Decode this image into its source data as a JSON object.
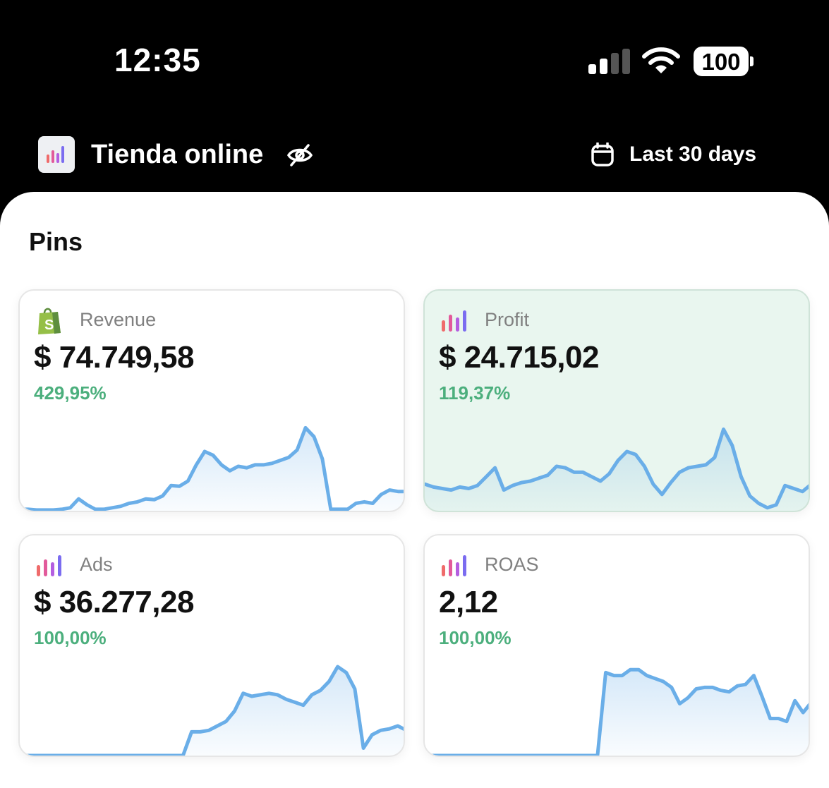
{
  "status_bar": {
    "time": "12:35",
    "battery": "100",
    "signal_icon": "signal-icon",
    "wifi_icon": "wifi-icon"
  },
  "header": {
    "store_name": "Tienda online",
    "date_range": "Last 30 days",
    "hide_icon": "eye-off-icon",
    "calendar_icon": "calendar-icon"
  },
  "pins": {
    "title": "Pins",
    "cards": [
      {
        "label": "Revenue",
        "value": "$ 74.749,58",
        "change": "429,95%",
        "icon": "shopify-bag-icon"
      },
      {
        "label": "Profit",
        "value": "$ 24.715,02",
        "change": "119,37%",
        "icon": "bar-chart-icon"
      },
      {
        "label": "Ads",
        "value": "$ 36.277,28",
        "change": "100,00%",
        "icon": "bar-chart-icon"
      },
      {
        "label": "ROAS",
        "value": "2,12",
        "change": "100,00%",
        "icon": "bar-chart-icon"
      }
    ]
  },
  "colors": {
    "positive": "#4caf7d",
    "sparkline_stroke": "#6aaee8",
    "profit_card_bg": "#e9f6ef"
  },
  "chart_data": [
    {
      "type": "area",
      "name": "Revenue",
      "values": [
        2,
        2,
        1,
        1,
        1,
        2,
        4,
        16,
        8,
        2,
        2,
        4,
        6,
        10,
        12,
        16,
        15,
        20,
        34,
        33,
        40,
        62,
        80,
        75,
        62,
        54,
        60,
        58,
        62,
        62,
        64,
        68,
        72,
        82,
        112,
        100,
        70,
        2,
        2,
        2,
        10,
        12,
        10,
        22,
        28,
        26,
        26
      ]
    },
    {
      "type": "area",
      "name": "Profit",
      "values": [
        36,
        32,
        30,
        28,
        32,
        30,
        34,
        46,
        58,
        28,
        34,
        38,
        40,
        44,
        48,
        60,
        58,
        52,
        52,
        46,
        40,
        50,
        68,
        80,
        76,
        60,
        36,
        22,
        38,
        52,
        58,
        60,
        62,
        72,
        110,
        88,
        46,
        20,
        10,
        4,
        8,
        34,
        30,
        26,
        36
      ]
    },
    {
      "type": "area",
      "name": "Ads",
      "values": [
        0,
        0,
        0,
        0,
        0,
        0,
        0,
        0,
        0,
        0,
        0,
        0,
        0,
        0,
        0,
        0,
        0,
        0,
        0,
        0,
        32,
        32,
        34,
        40,
        46,
        60,
        84,
        80,
        82,
        84,
        82,
        76,
        72,
        68,
        82,
        88,
        100,
        120,
        112,
        90,
        10,
        28,
        34,
        36,
        40,
        34
      ]
    },
    {
      "type": "area",
      "name": "ROAS",
      "values": [
        0,
        0,
        0,
        0,
        0,
        0,
        0,
        0,
        0,
        0,
        0,
        0,
        0,
        0,
        0,
        0,
        0,
        0,
        0,
        0,
        0,
        0,
        112,
        108,
        108,
        116,
        116,
        108,
        104,
        100,
        92,
        70,
        78,
        90,
        92,
        92,
        88,
        86,
        94,
        96,
        108,
        80,
        50,
        50,
        46,
        74,
        58,
        72
      ]
    }
  ]
}
